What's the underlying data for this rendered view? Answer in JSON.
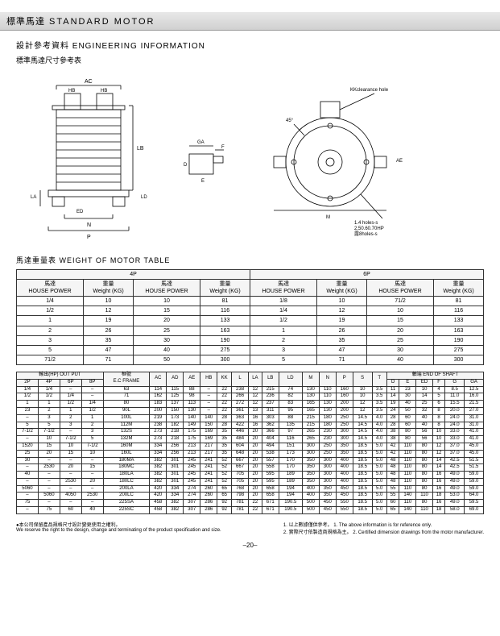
{
  "header": {
    "cn": "標準馬達",
    "en": "STANDARD MOTOR"
  },
  "sub1": {
    "cn": "設計參考資料",
    "en": "ENGINEERING INFORMATION"
  },
  "sub2": "標準馬達尺寸參考表",
  "diagLabels": {
    "ac": "AC",
    "hb": "HB",
    "lb": "LB",
    "la": "LA",
    "ld": "LD",
    "ed": "ED",
    "n": "N",
    "p": "P",
    "ga": "GA",
    "f": "F",
    "d": "D",
    "e": "E",
    "kk": "KKclearance hole",
    "ae": "AE",
    "m": "M",
    "ad": "AD",
    "a45": "45°",
    "holes1": "1.4 holes-s",
    "holes2": "2.50.60.70HP",
    "holes3": "露8holes-s"
  },
  "sect2": {
    "cn": "馬達重量表",
    "en": "WEIGHT OF MOTOR TABLE"
  },
  "wt": {
    "h4": "4P",
    "h6": "6P",
    "hp": "馬達",
    "hpE": "HOUSE POWER",
    "wt": "重量",
    "wtE": "Weight (KG)",
    "r": [
      [
        "1/4",
        "10",
        "10",
        "81",
        "1/8",
        "10",
        "71/2",
        "81"
      ],
      [
        "1/2",
        "12",
        "15",
        "116",
        "1/4",
        "12",
        "10",
        "116"
      ],
      [
        "1",
        "19",
        "20",
        "133",
        "1/2",
        "19",
        "15",
        "133"
      ],
      [
        "2",
        "26",
        "25",
        "163",
        "1",
        "26",
        "20",
        "163"
      ],
      [
        "3",
        "35",
        "30",
        "190",
        "2",
        "35",
        "25",
        "190"
      ],
      [
        "5",
        "47",
        "40",
        "275",
        "3",
        "47",
        "30",
        "275"
      ],
      [
        "71/2",
        "71",
        "50",
        "300",
        "5",
        "71",
        "40",
        "300"
      ]
    ]
  },
  "dim": {
    "hOut": "輸出(HP) OUT PUT",
    "hFr": "框號",
    "hFrE": "E.C FRAME",
    "hEnd": "軸端 END OF SHAFT",
    "c": [
      "2P",
      "4P",
      "6P",
      "8P",
      "",
      "AC",
      "AD",
      "AE",
      "HB",
      "KK",
      "L",
      "LA",
      "LB",
      "LD",
      "M",
      "N",
      "P",
      "S",
      "T",
      "D",
      "E",
      "ED",
      "F",
      "G",
      "GA"
    ],
    "r": [
      [
        "1/4",
        "1/4",
        "–",
        "–",
        "63",
        "114",
        "115",
        "88",
        "–",
        "22",
        "238",
        "12",
        "215",
        "74",
        "130",
        "110",
        "160",
        "10",
        "3.5",
        "11",
        "23",
        "10",
        "4",
        "8.5",
        "12.5"
      ],
      [
        "1/2",
        "1/2",
        "1/4",
        "–",
        "71",
        "162",
        "125",
        "98",
        "–",
        "22",
        "266",
        "12",
        "236",
        "82",
        "130",
        "110",
        "160",
        "10",
        "3.5",
        "14",
        "30",
        "14",
        "5",
        "11.0",
        "16.0"
      ],
      [
        "1",
        "1",
        "1/2",
        "1/4",
        "80",
        "183",
        "137",
        "113",
        "–",
        "22",
        "272",
        "12",
        "237",
        "83",
        "165",
        "130",
        "200",
        "12",
        "3.5",
        "19",
        "40",
        "25",
        "6",
        "15.5",
        "21.5"
      ],
      [
        "23",
        "2",
        "1",
        "1/2",
        "90L",
        "200",
        "150",
        "130",
        "–",
        "22",
        "361",
        "13",
        "311",
        "95",
        "165",
        "130",
        "200",
        "12",
        "3.5",
        "24",
        "50",
        "32",
        "8",
        "20.0",
        "27.0"
      ],
      [
        "–",
        "3",
        "2",
        "1",
        "100L",
        "219",
        "173",
        "140",
        "140",
        "28",
        "363",
        "16",
        "303",
        "88",
        "215",
        "180",
        "250",
        "14.5",
        "4.0",
        "28",
        "60",
        "40",
        "8",
        "24.0",
        "31.0"
      ],
      [
        "5",
        "5",
        "3",
        "2",
        "112M",
        "238",
        "182",
        "149",
        "150",
        "28",
        "422",
        "16",
        "362",
        "135",
        "215",
        "180",
        "250",
        "14.5",
        "4.0",
        "28",
        "60",
        "40",
        "8",
        "24.0",
        "31.0"
      ],
      [
        "7-1/2",
        "7-1/2",
        "–",
        "3",
        "132S",
        "273",
        "218",
        "175",
        "169",
        "35",
        "446",
        "20",
        "366",
        "97",
        "265",
        "230",
        "300",
        "14.5",
        "4.0",
        "38",
        "80",
        "56",
        "10",
        "33.0",
        "41.0"
      ],
      [
        "–",
        "10",
        "7-1/2",
        "5",
        "132M",
        "273",
        "218",
        "175",
        "169",
        "35",
        "484",
        "20",
        "404",
        "116",
        "265",
        "230",
        "300",
        "14.5",
        "4.0",
        "38",
        "80",
        "56",
        "10",
        "33.0",
        "41.0"
      ],
      [
        "1520",
        "15",
        "10",
        "7-1/2",
        "160M",
        "334",
        "256",
        "213",
        "217",
        "35",
        "604",
        "20",
        "494",
        "151",
        "300",
        "250",
        "350",
        "18.5",
        "5.0",
        "42",
        "110",
        "80",
        "12",
        "37.0",
        "45.0"
      ],
      [
        "25",
        "20",
        "15",
        "10",
        "160L",
        "334",
        "256",
        "213",
        "217",
        "35",
        "648",
        "20",
        "538",
        "173",
        "300",
        "250",
        "350",
        "18.5",
        "5.0",
        "42",
        "110",
        "80",
        "12",
        "37.0",
        "45.0"
      ],
      [
        "30",
        "–",
        "–",
        "–",
        "180MA",
        "382",
        "301",
        "245",
        "241",
        "52",
        "667",
        "20",
        "557",
        "170",
        "350",
        "300",
        "400",
        "18.5",
        "5.0",
        "48",
        "110",
        "80",
        "14",
        "42.5",
        "51.5"
      ],
      [
        "–",
        "2530",
        "20",
        "15",
        "180MC",
        "382",
        "301",
        "245",
        "241",
        "52",
        "667",
        "20",
        "558",
        "170",
        "350",
        "300",
        "400",
        "18.5",
        "5.0",
        "48",
        "110",
        "80",
        "14",
        "42.5",
        "51.5"
      ],
      [
        "40",
        "–",
        "–",
        "–",
        "180LA",
        "382",
        "301",
        "245",
        "241",
        "52",
        "705",
        "20",
        "595",
        "189",
        "350",
        "300",
        "400",
        "18.5",
        "5.0",
        "48",
        "110",
        "80",
        "16",
        "49.0",
        "59.0"
      ],
      [
        "–",
        "–",
        "2530",
        "20",
        "180LC",
        "382",
        "301",
        "245",
        "241",
        "52",
        "705",
        "20",
        "595",
        "189",
        "350",
        "300",
        "400",
        "18.5",
        "5.0",
        "48",
        "110",
        "80",
        "16",
        "49.0",
        "59.0"
      ],
      [
        "5060",
        "–",
        "–",
        "–",
        "200LA",
        "420",
        "334",
        "274",
        "260",
        "65",
        "768",
        "20",
        "658",
        "194",
        "400",
        "350",
        "450",
        "18.5",
        "5.0",
        "55",
        "110",
        "80",
        "16",
        "49.0",
        "59.0"
      ],
      [
        "–",
        "5060",
        "4050",
        "2530",
        "200LC",
        "420",
        "334",
        "274",
        "260",
        "65",
        "798",
        "20",
        "658",
        "194",
        "400",
        "350",
        "450",
        "18.5",
        "5.0",
        "55",
        "140",
        "110",
        "18",
        "53.0",
        "64.0"
      ],
      [
        "75",
        "–",
        "–",
        "–",
        "225SA",
        "458",
        "382",
        "307",
        "286",
        "92",
        "781",
        "22",
        "671",
        "190.5",
        "500",
        "450",
        "550",
        "18.5",
        "5.0",
        "60",
        "110",
        "80",
        "16",
        "49.0",
        "59.5"
      ],
      [
        "–",
        "75",
        "60",
        "40",
        "225SC",
        "458",
        "382",
        "307",
        "286",
        "92",
        "781",
        "22",
        "671",
        "190.5",
        "500",
        "450",
        "550",
        "18.5",
        "5.0",
        "65",
        "140",
        "110",
        "18",
        "58.0",
        "69.0"
      ]
    ]
  },
  "noteL1": "●本公司保留產品規格尺寸設計變更使用之權利。",
  "noteL2": "We reserve the right to the design, change and terminating of the product specification and size.",
  "noteR1": "1. 以上數據僅供參考。",
  "noteR2": "2. 實際尺寸依製造商規格為主。",
  "noteR3": "1. The above information is for reference only.",
  "noteR4": "2. Certified dimension drawings from the motor manufacturer.",
  "pg": "–20–"
}
